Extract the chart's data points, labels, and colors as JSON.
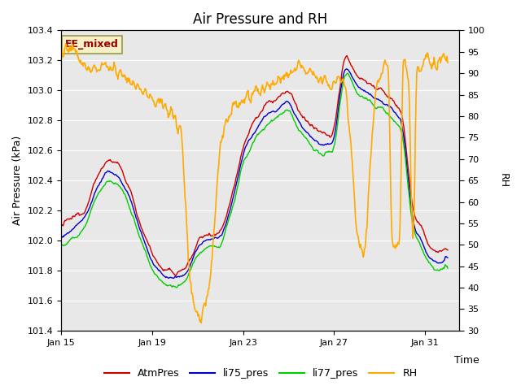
{
  "title": "Air Pressure and RH",
  "xlabel": "Time",
  "ylabel_left": "Air Pressure (kPa)",
  "ylabel_right": "RH",
  "ylim_left": [
    101.4,
    103.4
  ],
  "ylim_right": [
    30,
    100
  ],
  "yticks_left": [
    101.4,
    101.6,
    101.8,
    102.0,
    102.2,
    102.4,
    102.6,
    102.8,
    103.0,
    103.2,
    103.4
  ],
  "yticks_right": [
    30,
    35,
    40,
    45,
    50,
    55,
    60,
    65,
    70,
    75,
    80,
    85,
    90,
    95,
    100
  ],
  "xtick_positions": [
    0,
    4,
    8,
    12,
    16
  ],
  "xtick_labels": [
    "Jan 15",
    "Jan 19",
    "Jan 23",
    "Jan 27",
    "Jan 31"
  ],
  "xlim": [
    0,
    17.5
  ],
  "legend_labels": [
    "AtmPres",
    "li75_pres",
    "li77_pres",
    "RH"
  ],
  "line_colors": [
    "#cc0000",
    "#0000cc",
    "#00cc00",
    "#ffaa00"
  ],
  "annotation_text": "EE_mixed",
  "annotation_color": "#990000",
  "annotation_bg": "#f5f0c8",
  "annotation_border": "#999944",
  "plot_bg": "#e8e8e8",
  "grid_color": "#ffffff",
  "title_fontsize": 12,
  "axis_fontsize": 9,
  "tick_fontsize": 8,
  "legend_fontsize": 9
}
